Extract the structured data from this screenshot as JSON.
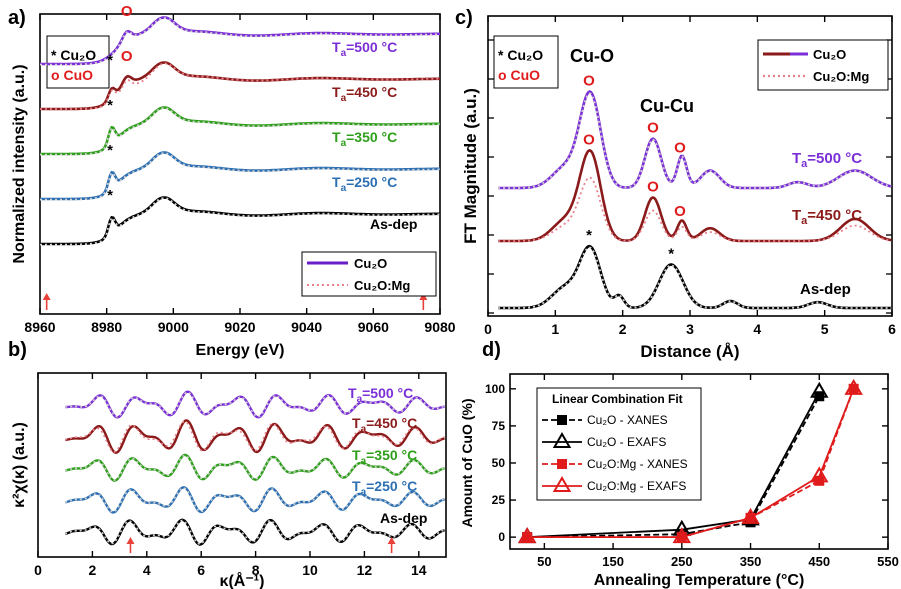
{
  "panels": {
    "a": {
      "label": "a)",
      "chart_data": {
        "type": "line",
        "xlabel": "Energy (eV)",
        "ylabel": "Normalized intensity (a.u.)",
        "xlim": [
          8960,
          9080
        ],
        "xticks": [
          "8960",
          "8980",
          "9000",
          "9020",
          "9040",
          "9060",
          "9080"
        ],
        "legend_species": [
          {
            "marker": "*",
            "name": "Cu₂O"
          },
          {
            "marker": "O",
            "name": "CuO"
          }
        ],
        "legend": [
          "Cu₂O",
          "Cu₂O:Mg"
        ],
        "curves": [
          {
            "name": "Ta=500 °C",
            "color": "#6a1ec8",
            "markers": [
              {
                "x": 8986,
                "symbol": "O"
              }
            ]
          },
          {
            "name": "Ta=450 °C",
            "color": "#8b1a1a",
            "markers": [
              {
                "x": 8981,
                "symbol": "*"
              },
              {
                "x": 8986,
                "symbol": "O"
              }
            ]
          },
          {
            "name": "Ta=350 °C",
            "color": "#2e9f1a",
            "markers": [
              {
                "x": 8981,
                "symbol": "*"
              }
            ]
          },
          {
            "name": "Ta=250 °C",
            "color": "#2c6fb3",
            "markers": [
              {
                "x": 8981,
                "symbol": "*"
              }
            ]
          },
          {
            "name": "As-dep",
            "color": "#000000",
            "markers": [
              {
                "x": 8981,
                "symbol": "*"
              }
            ]
          }
        ],
        "arrows_x": [
          8962,
          9075
        ]
      }
    },
    "b": {
      "label": "b)",
      "chart_data": {
        "type": "line",
        "xlabel": "κ(Å⁻¹)",
        "ylabel": "κ²χ(κ) (a.u.)",
        "xlim": [
          0,
          15
        ],
        "xticks": [
          "0",
          "2",
          "4",
          "6",
          "8",
          "10",
          "12",
          "14"
        ],
        "curves": [
          "Ta=500 °C",
          "Ta=450 °C",
          "Ta=350 °C",
          "Ta=250 °C",
          "As-dep"
        ],
        "arrows_x": [
          3.4,
          13
        ]
      }
    },
    "c": {
      "label": "c)",
      "chart_data": {
        "type": "line",
        "xlabel": "Distance (Å)",
        "ylabel": "FT Magnitude (a.u.)",
        "xlim": [
          0,
          6
        ],
        "xticks": [
          "0",
          "1",
          "2",
          "3",
          "4",
          "5",
          "6"
        ],
        "legend_species": [
          {
            "marker": "*",
            "name": "Cu₂O"
          },
          {
            "marker": "O",
            "name": "CuO"
          }
        ],
        "legend": [
          "Cu₂O",
          "Cu₂O:Mg"
        ],
        "annotations": [
          "Cu-O",
          "Cu-Cu"
        ],
        "curves": [
          {
            "name": "Ta=500 °C",
            "markers": [
              {
                "x": 1.5,
                "symbol": "O"
              },
              {
                "x": 2.45,
                "symbol": "O"
              },
              {
                "x": 2.85,
                "symbol": "O"
              }
            ]
          },
          {
            "name": "Ta=450 °C",
            "markers": [
              {
                "x": 1.5,
                "symbol": "O"
              },
              {
                "x": 2.45,
                "symbol": "O"
              },
              {
                "x": 2.85,
                "symbol": "O"
              }
            ]
          },
          {
            "name": "As-dep",
            "markers": [
              {
                "x": 1.5,
                "symbol": "*"
              },
              {
                "x": 2.72,
                "symbol": "*"
              }
            ]
          }
        ]
      }
    },
    "d": {
      "label": "d)",
      "chart_data": {
        "type": "line",
        "xlabel": "Annealing Temperature (°C)",
        "ylabel": "Amount of CuO (%)",
        "xlim": [
          0,
          550
        ],
        "ylim": [
          -8,
          110
        ],
        "xticks": [
          "50",
          "150",
          "250",
          "350",
          "450",
          "550"
        ],
        "yticks": [
          "0",
          "25",
          "50",
          "75",
          "100"
        ],
        "legend_title": "Linear Combination Fit",
        "series": [
          {
            "name": "Cu₂O - XANES",
            "color": "#000000",
            "marker": "square-filled",
            "dash": "6,3",
            "x": [
              25,
              250,
              350,
              450
            ],
            "y": [
              0,
              2,
              10,
              95
            ]
          },
          {
            "name": "Cu₂O - EXAFS",
            "color": "#000000",
            "marker": "triangle-open",
            "dash": "",
            "x": [
              25,
              250,
              350,
              450
            ],
            "y": [
              0,
              5,
              12,
              98
            ]
          },
          {
            "name": "Cu₂O:Mg - XANES",
            "color": "#e01b1b",
            "marker": "square-filled",
            "dash": "6,3",
            "x": [
              25,
              250,
              350,
              450,
              500
            ],
            "y": [
              0,
              0,
              13,
              38,
              100
            ]
          },
          {
            "name": "Cu₂O:Mg - EXAFS",
            "color": "#e01b1b",
            "marker": "triangle-open",
            "dash": "",
            "x": [
              25,
              250,
              350,
              450,
              500
            ],
            "y": [
              0,
              0,
              13,
              41,
              100
            ]
          }
        ]
      }
    }
  },
  "curve_labels": {
    "ta500": {
      "pre": "T",
      "sub": "a",
      "rest": "=500 °C"
    },
    "ta450": {
      "pre": "T",
      "sub": "a",
      "rest": "=450 °C"
    },
    "ta350": {
      "pre": "T",
      "sub": "a",
      "rest": "=350 °C"
    },
    "ta250": {
      "pre": "T",
      "sub": "a",
      "rest": "=250 °C"
    },
    "asdep": "As-dep"
  },
  "colors": {
    "ta500": "#7b2fd6",
    "ta450": "#8b1a1a",
    "ta350": "#2e9f1a",
    "ta250": "#2c6fb3",
    "asdep": "#000000",
    "marker_red": "#e01b1b",
    "arrow": "#e8413a",
    "mg_dotted": "#e8808a"
  }
}
